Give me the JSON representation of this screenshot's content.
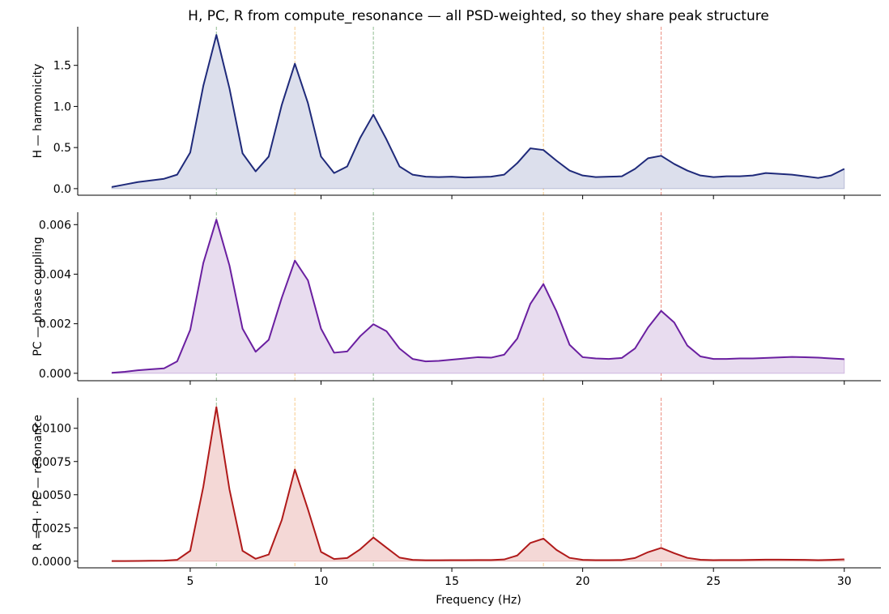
{
  "title": "H, PC, R from compute_resonance — all PSD-weighted, so they share peak structure",
  "xlabel": "Frequency (Hz)",
  "chart_data": {
    "type": "area",
    "x": [
      2,
      2.5,
      3,
      3.5,
      4,
      4.5,
      5,
      5.5,
      6,
      6.5,
      7,
      7.5,
      8,
      8.5,
      9,
      9.5,
      10,
      10.5,
      11,
      11.5,
      12,
      12.5,
      13,
      13.5,
      14,
      14.5,
      15,
      15.5,
      16,
      16.5,
      17,
      17.5,
      18,
      18.5,
      19,
      19.5,
      20,
      20.5,
      21,
      21.5,
      22,
      22.5,
      23,
      23.5,
      24,
      24.5,
      25,
      25.5,
      26,
      26.5,
      27,
      27.5,
      28,
      28.5,
      29,
      29.5,
      30
    ],
    "xlim": [
      0.7,
      31.4
    ],
    "xticks": [
      5,
      10,
      15,
      20,
      25,
      30
    ],
    "vlines": [
      {
        "x": 6,
        "color": "#7fb27f"
      },
      {
        "x": 9,
        "color": "#f5c27a"
      },
      {
        "x": 12,
        "color": "#7fb27f"
      },
      {
        "x": 18.5,
        "color": "#f5c27a"
      },
      {
        "x": 23,
        "color": "#e87a6a"
      }
    ],
    "panels": [
      {
        "ylabel": "H — harmonicity",
        "color": "#1f2a7a",
        "fill": "#dcdfec",
        "ylim": [
          -0.08,
          1.97
        ],
        "yticks": [
          0.0,
          0.5,
          1.0,
          1.5
        ],
        "ytick_labels": [
          "0.0",
          "0.5",
          "1.0",
          "1.5"
        ],
        "values": [
          0.02,
          0.05,
          0.08,
          0.1,
          0.12,
          0.17,
          0.44,
          1.25,
          1.87,
          1.22,
          0.43,
          0.21,
          0.39,
          1.02,
          1.52,
          1.04,
          0.39,
          0.19,
          0.27,
          0.62,
          0.9,
          0.6,
          0.27,
          0.17,
          0.145,
          0.14,
          0.145,
          0.135,
          0.14,
          0.145,
          0.17,
          0.31,
          0.49,
          0.47,
          0.34,
          0.22,
          0.16,
          0.14,
          0.145,
          0.15,
          0.24,
          0.37,
          0.4,
          0.3,
          0.22,
          0.16,
          0.14,
          0.15,
          0.15,
          0.16,
          0.19,
          0.18,
          0.17,
          0.15,
          0.13,
          0.16,
          0.24
        ]
      },
      {
        "ylabel": "PC — phase coupling",
        "color": "#6a1fa0",
        "fill": "#e8dcef",
        "ylim": [
          -0.0003,
          0.0065
        ],
        "yticks": [
          0.0,
          0.002,
          0.004,
          0.006
        ],
        "ytick_labels": [
          "0.000",
          "0.002",
          "0.004",
          "0.006"
        ],
        "values": [
          2e-05,
          6e-05,
          0.00012,
          0.00016,
          0.0002,
          0.00048,
          0.00175,
          0.00445,
          0.0062,
          0.00435,
          0.0018,
          0.00087,
          0.00135,
          0.00305,
          0.00455,
          0.00375,
          0.0018,
          0.00083,
          0.00088,
          0.0015,
          0.00198,
          0.0017,
          0.001,
          0.00058,
          0.00048,
          0.0005,
          0.00055,
          0.0006,
          0.00065,
          0.00063,
          0.00075,
          0.0014,
          0.0028,
          0.0036,
          0.0025,
          0.00115,
          0.00065,
          0.0006,
          0.00058,
          0.00062,
          0.001,
          0.00185,
          0.00252,
          0.00205,
          0.00112,
          0.00068,
          0.00058,
          0.00058,
          0.0006,
          0.0006,
          0.00062,
          0.00064,
          0.00066,
          0.00065,
          0.00063,
          0.0006,
          0.00057
        ]
      },
      {
        "ylabel": "R = H · PC — resonance",
        "color": "#b01a1a",
        "fill": "#f4d8d6",
        "ylim": [
          -0.0005,
          0.0123
        ],
        "yticks": [
          0.0,
          0.0025,
          0.005,
          0.0075,
          0.01
        ],
        "ytick_labels": [
          "0.0000",
          "0.0025",
          "0.0050",
          "0.0075",
          "0.0100"
        ],
        "values": [
          1e-05,
          1e-05,
          2e-05,
          3e-05,
          4e-05,
          0.0001,
          0.00078,
          0.0056,
          0.0116,
          0.0054,
          0.00078,
          0.00018,
          0.0005,
          0.0031,
          0.0069,
          0.0039,
          0.0007,
          0.00016,
          0.00024,
          0.0009,
          0.00178,
          0.00102,
          0.00027,
          0.0001,
          7e-05,
          7e-05,
          8e-05,
          8e-05,
          9e-05,
          9e-05,
          0.00013,
          0.00043,
          0.00137,
          0.0017,
          0.00085,
          0.00025,
          0.0001,
          8e-05,
          8e-05,
          9e-05,
          0.00024,
          0.00068,
          0.001,
          0.0006,
          0.00025,
          0.00011,
          8e-05,
          9e-05,
          9e-05,
          0.0001,
          0.00012,
          0.00012,
          0.00011,
          0.0001,
          8e-05,
          0.0001,
          0.00014
        ]
      }
    ]
  }
}
